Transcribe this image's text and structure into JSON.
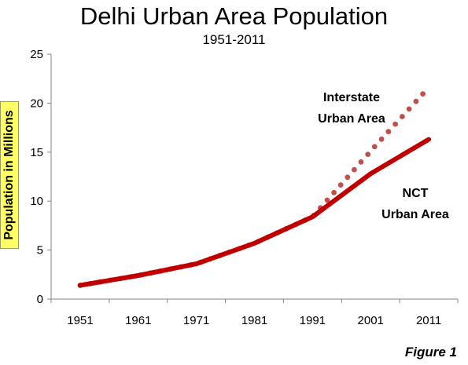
{
  "chart_data": {
    "type": "line",
    "title": "Delhi Urban Area Population",
    "subtitle": "1951-2011",
    "ylabel": "Population in Millions",
    "xlabel": "",
    "categories": [
      "1951",
      "1961",
      "1971",
      "1981",
      "1991",
      "2001",
      "2011"
    ],
    "x": [
      1951,
      1961,
      1971,
      1981,
      1991,
      2001,
      2011
    ],
    "ylim": [
      0,
      25
    ],
    "yticks": [
      "0",
      "5",
      "10",
      "15",
      "20",
      "25"
    ],
    "grid": false,
    "series": [
      {
        "label": "NCT Urban Area",
        "label_lines": [
          "NCT",
          "Urban Area"
        ],
        "style": "solid",
        "color": "#c00000",
        "values": [
          1.4,
          2.4,
          3.6,
          5.7,
          8.4,
          12.8,
          16.3
        ]
      },
      {
        "label": "Interstate Urban Area",
        "label_lines": [
          "Interstate",
          "Urban Area"
        ],
        "style": "dotted",
        "color": "#c0504d",
        "values": [
          1.4,
          2.4,
          3.6,
          5.7,
          8.4,
          15.1,
          21.6
        ]
      }
    ]
  },
  "figure_label": "Figure 1"
}
